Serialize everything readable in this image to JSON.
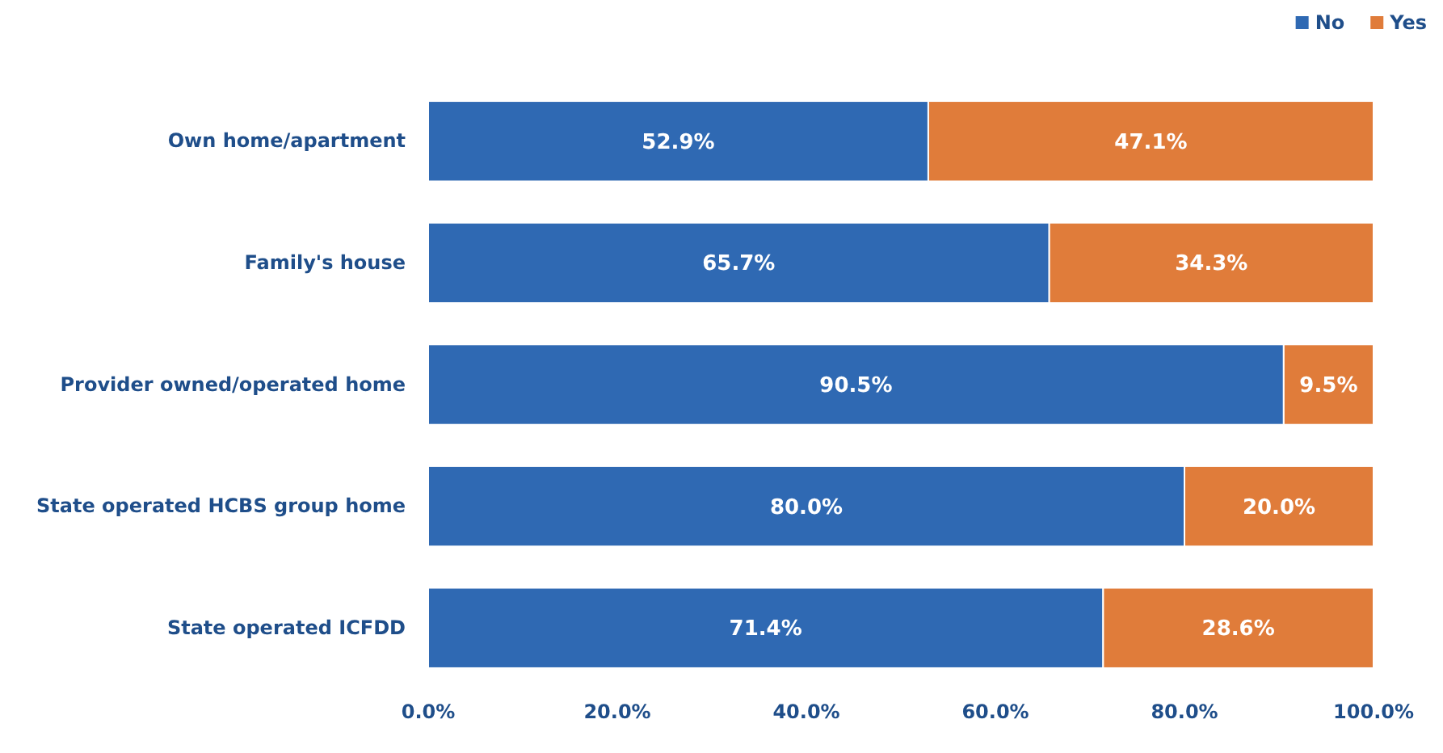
{
  "chart_data": {
    "type": "bar",
    "orientation": "horizontal",
    "stacked": true,
    "categories": [
      "Own home/apartment",
      "Family's house",
      "Provider owned/operated home",
      "State operated HCBS group home",
      "State operated ICFDD"
    ],
    "series": [
      {
        "name": "No",
        "color": "#2f69b3",
        "values": [
          52.9,
          65.7,
          90.5,
          80.0,
          71.4
        ],
        "value_labels": [
          "52.9%",
          "65.7%",
          "90.5%",
          "80.0%",
          "71.4%"
        ]
      },
      {
        "name": "Yes",
        "color": "#e07c3a",
        "values": [
          47.1,
          34.3,
          9.5,
          20.0,
          28.6
        ],
        "value_labels": [
          "47.1%",
          "34.3%",
          "9.5%",
          "20.0%",
          "28.6%"
        ]
      }
    ],
    "xlim": [
      0,
      100
    ],
    "xticks": [
      {
        "value": 0,
        "label": "0.0%"
      },
      {
        "value": 20,
        "label": "20.0%"
      },
      {
        "value": 40,
        "label": "40.0%"
      },
      {
        "value": 60,
        "label": "60.0%"
      },
      {
        "value": 80,
        "label": "80.0%"
      },
      {
        "value": 100,
        "label": "100.0%"
      }
    ],
    "legend": "top right",
    "grid": false
  }
}
